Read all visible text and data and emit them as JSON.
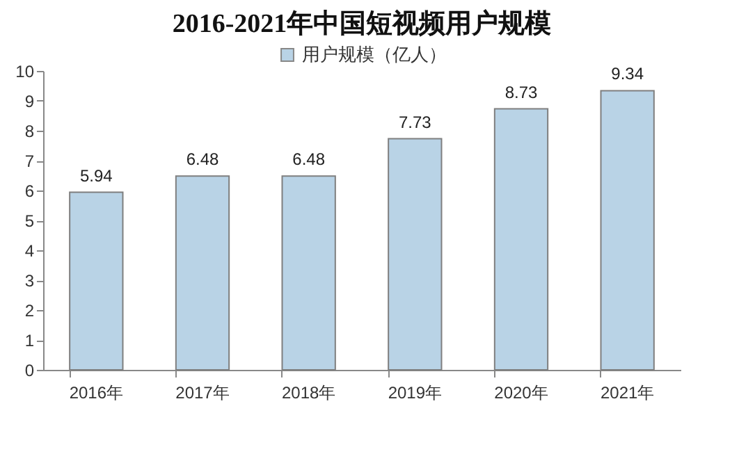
{
  "chart_data": {
    "type": "bar",
    "title": "2016-2021年中国短视频用户规模",
    "categories": [
      "2016年",
      "2017年",
      "2018年",
      "2019年",
      "2020年",
      "2021年"
    ],
    "series": [
      {
        "name": "用户规模（亿人）",
        "color": "#b9d3e6",
        "values": [
          5.94,
          6.48,
          6.48,
          7.73,
          8.73,
          9.34
        ]
      }
    ],
    "ylim": [
      0,
      10
    ],
    "yticks": [
      0,
      1,
      2,
      3,
      4,
      5,
      6,
      7,
      8,
      9,
      10
    ],
    "grid": false,
    "legend": "top",
    "data_labels": true
  }
}
